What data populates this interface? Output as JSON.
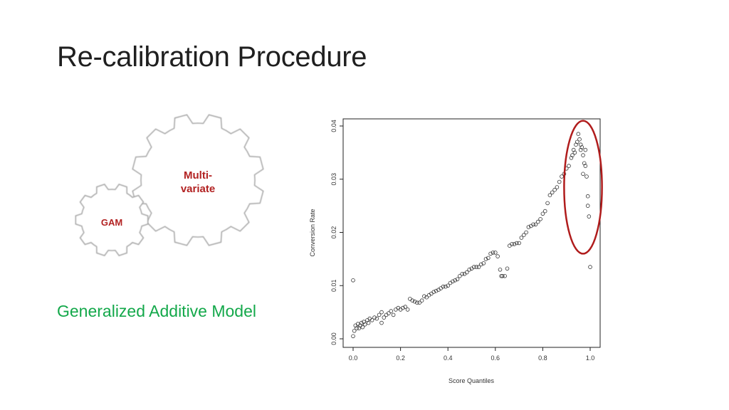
{
  "slide": {
    "title": "Re-calibration Procedure",
    "caption": "Generalized Additive Model"
  },
  "gears": {
    "small_label": "GAM",
    "large_label_line1": "Multi-",
    "large_label_line2": "variate",
    "label_color": "#b22222",
    "outline_color": "#a8a8a8",
    "icon": "gears-icon"
  },
  "colors": {
    "caption": "#13a84a",
    "highlight_ellipse": "#b01c1c",
    "points": "#333333"
  },
  "chart_data": {
    "type": "scatter",
    "xlabel": "Score Quantiles",
    "ylabel": "Conversion Rate",
    "xlim": [
      0.0,
      1.0
    ],
    "ylim": [
      0.0,
      0.04
    ],
    "x_ticks": [
      "0.0",
      "0.2",
      "0.4",
      "0.6",
      "0.8",
      "1.0"
    ],
    "y_ticks": [
      "0.00",
      "0.01",
      "0.02",
      "0.03",
      "0.04"
    ],
    "grid": false,
    "series": [
      {
        "marker": "open-circle",
        "points": [
          [
            0.0,
            0.0005
          ],
          [
            0.0,
            0.011
          ],
          [
            0.005,
            0.0015
          ],
          [
            0.01,
            0.0025
          ],
          [
            0.015,
            0.002
          ],
          [
            0.02,
            0.0028
          ],
          [
            0.025,
            0.002
          ],
          [
            0.03,
            0.0025
          ],
          [
            0.035,
            0.003
          ],
          [
            0.04,
            0.0022
          ],
          [
            0.045,
            0.0032
          ],
          [
            0.05,
            0.0027
          ],
          [
            0.06,
            0.0035
          ],
          [
            0.065,
            0.003
          ],
          [
            0.07,
            0.0038
          ],
          [
            0.08,
            0.0035
          ],
          [
            0.09,
            0.004
          ],
          [
            0.1,
            0.0038
          ],
          [
            0.11,
            0.0045
          ],
          [
            0.12,
            0.005
          ],
          [
            0.12,
            0.003
          ],
          [
            0.13,
            0.004
          ],
          [
            0.14,
            0.0045
          ],
          [
            0.15,
            0.0048
          ],
          [
            0.16,
            0.0052
          ],
          [
            0.17,
            0.0045
          ],
          [
            0.18,
            0.0055
          ],
          [
            0.19,
            0.0058
          ],
          [
            0.2,
            0.0055
          ],
          [
            0.21,
            0.0058
          ],
          [
            0.22,
            0.006
          ],
          [
            0.23,
            0.0055
          ],
          [
            0.24,
            0.0075
          ],
          [
            0.25,
            0.0072
          ],
          [
            0.26,
            0.007
          ],
          [
            0.27,
            0.0068
          ],
          [
            0.28,
            0.0068
          ],
          [
            0.29,
            0.0072
          ],
          [
            0.3,
            0.008
          ],
          [
            0.31,
            0.0078
          ],
          [
            0.32,
            0.0082
          ],
          [
            0.33,
            0.0085
          ],
          [
            0.34,
            0.0088
          ],
          [
            0.35,
            0.009
          ],
          [
            0.36,
            0.0092
          ],
          [
            0.37,
            0.0095
          ],
          [
            0.38,
            0.0098
          ],
          [
            0.39,
            0.0098
          ],
          [
            0.4,
            0.01
          ],
          [
            0.41,
            0.0105
          ],
          [
            0.42,
            0.0108
          ],
          [
            0.43,
            0.011
          ],
          [
            0.44,
            0.0112
          ],
          [
            0.45,
            0.0118
          ],
          [
            0.46,
            0.0122
          ],
          [
            0.47,
            0.0122
          ],
          [
            0.48,
            0.0125
          ],
          [
            0.49,
            0.013
          ],
          [
            0.5,
            0.0132
          ],
          [
            0.51,
            0.0135
          ],
          [
            0.52,
            0.0135
          ],
          [
            0.53,
            0.0135
          ],
          [
            0.54,
            0.014
          ],
          [
            0.55,
            0.0142
          ],
          [
            0.56,
            0.015
          ],
          [
            0.57,
            0.0152
          ],
          [
            0.58,
            0.016
          ],
          [
            0.59,
            0.0162
          ],
          [
            0.6,
            0.0162
          ],
          [
            0.61,
            0.0155
          ],
          [
            0.62,
            0.013
          ],
          [
            0.625,
            0.0118
          ],
          [
            0.63,
            0.0118
          ],
          [
            0.64,
            0.0118
          ],
          [
            0.65,
            0.0132
          ],
          [
            0.66,
            0.0175
          ],
          [
            0.67,
            0.0178
          ],
          [
            0.68,
            0.0178
          ],
          [
            0.69,
            0.018
          ],
          [
            0.7,
            0.018
          ],
          [
            0.71,
            0.019
          ],
          [
            0.72,
            0.0195
          ],
          [
            0.73,
            0.02
          ],
          [
            0.74,
            0.021
          ],
          [
            0.75,
            0.0212
          ],
          [
            0.76,
            0.0215
          ],
          [
            0.77,
            0.0215
          ],
          [
            0.78,
            0.022
          ],
          [
            0.79,
            0.0225
          ],
          [
            0.8,
            0.0235
          ],
          [
            0.81,
            0.024
          ],
          [
            0.82,
            0.0255
          ],
          [
            0.83,
            0.027
          ],
          [
            0.84,
            0.0275
          ],
          [
            0.85,
            0.028
          ],
          [
            0.86,
            0.0285
          ],
          [
            0.87,
            0.0295
          ],
          [
            0.88,
            0.0305
          ],
          [
            0.89,
            0.031
          ],
          [
            0.9,
            0.032
          ],
          [
            0.91,
            0.0325
          ],
          [
            0.92,
            0.034
          ],
          [
            0.925,
            0.0345
          ],
          [
            0.93,
            0.0355
          ],
          [
            0.935,
            0.035
          ],
          [
            0.94,
            0.0365
          ],
          [
            0.945,
            0.037
          ],
          [
            0.95,
            0.0385
          ],
          [
            0.955,
            0.0375
          ],
          [
            0.96,
            0.0365
          ],
          [
            0.96,
            0.0355
          ],
          [
            0.965,
            0.036
          ],
          [
            0.97,
            0.0345
          ],
          [
            0.97,
            0.031
          ],
          [
            0.975,
            0.033
          ],
          [
            0.98,
            0.0355
          ],
          [
            0.98,
            0.0325
          ],
          [
            0.985,
            0.0305
          ],
          [
            0.99,
            0.0268
          ],
          [
            0.99,
            0.025
          ],
          [
            0.995,
            0.023
          ],
          [
            1.0,
            0.0135
          ]
        ]
      }
    ],
    "annotations": [
      {
        "shape": "ellipse",
        "color": "#b01c1c",
        "x_range": [
          0.89,
          1.05
        ],
        "y_range": [
          0.016,
          0.041
        ]
      }
    ]
  }
}
